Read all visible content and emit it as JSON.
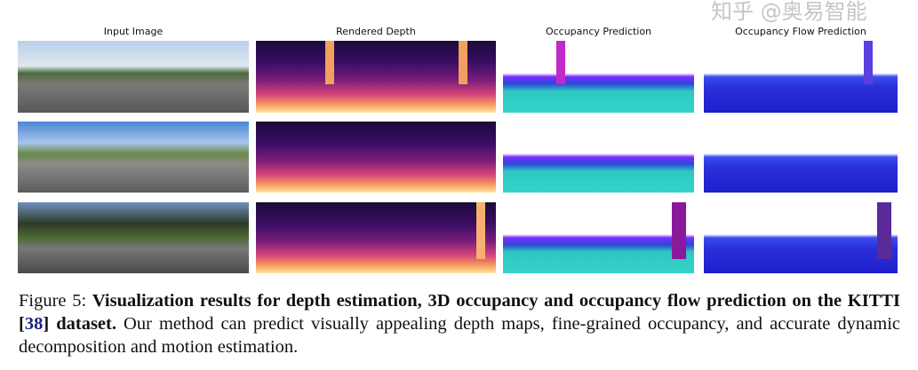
{
  "figure": {
    "column_headers": [
      "Input Image",
      "Rendered Depth",
      "Occupancy Prediction",
      "Occupancy Flow Prediction"
    ],
    "caption": {
      "label": "Figure 5:",
      "bold_a": "Visualization results for depth estimation, 3D occupancy and occupancy flow prediction on the KITTI",
      "citation": "38",
      "bold_b": "dataset.",
      "text": "Our method can predict visually appealing depth maps, fine-grained occupancy, and accurate dynamic decomposition and motion estimation."
    },
    "watermark": "知乎 @奥易智能"
  }
}
